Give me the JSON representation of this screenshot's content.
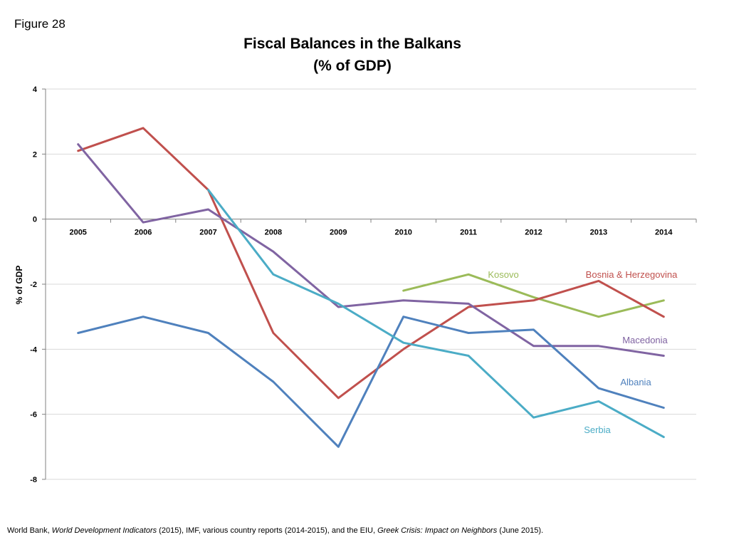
{
  "figure_label": "Figure 28",
  "source": {
    "part1": "World Bank, ",
    "part2": "World Development Indicators",
    "part3": " (2015), IMF, various country reports (2014-2015), and the EIU, ",
    "part4": "Greek Crisis: Impact on Neighbors",
    "part5": " (June 2015)."
  },
  "chart_data": {
    "type": "line",
    "title": "Fiscal Balances in the Balkans",
    "subtitle": "(% of GDP)",
    "xlabel": "",
    "ylabel": "% of GDP",
    "ylim": [
      -8,
      4
    ],
    "yticks": [
      "4",
      "2",
      "0",
      "-2",
      "-4",
      "-6",
      "-8"
    ],
    "grid": true,
    "legend": "inline labels",
    "categories": [
      "2005",
      "2006",
      "2007",
      "2008",
      "2009",
      "2010",
      "2011",
      "2012",
      "2013",
      "2014"
    ],
    "series": [
      {
        "name": "Kosovo",
        "color": "#9bbb59",
        "values": [
          null,
          null,
          null,
          null,
          null,
          -2.2,
          -1.7,
          -2.4,
          -3.0,
          -2.5
        ]
      },
      {
        "name": "Bosnia & Herzegovina",
        "color": "#c0504d",
        "values": [
          2.1,
          2.8,
          0.9,
          -3.5,
          -5.5,
          -4.0,
          -2.7,
          -2.5,
          -1.9,
          -3.0
        ]
      },
      {
        "name": "Macedonia",
        "color": "#8064a2",
        "values": [
          2.3,
          -0.1,
          0.3,
          -1.0,
          -2.7,
          -2.5,
          -2.6,
          -3.9,
          -3.9,
          -4.2
        ]
      },
      {
        "name": "Albania",
        "color": "#4f81bd",
        "values": [
          -3.5,
          -3.0,
          -3.5,
          -5.0,
          -7.0,
          -3.0,
          -3.5,
          -3.4,
          -5.2,
          -5.8
        ]
      },
      {
        "name": "Serbia",
        "color": "#4bacc6",
        "values": [
          null,
          null,
          0.9,
          -1.7,
          -2.6,
          -3.8,
          -4.2,
          -6.1,
          -5.6,
          -6.7
        ]
      }
    ]
  }
}
